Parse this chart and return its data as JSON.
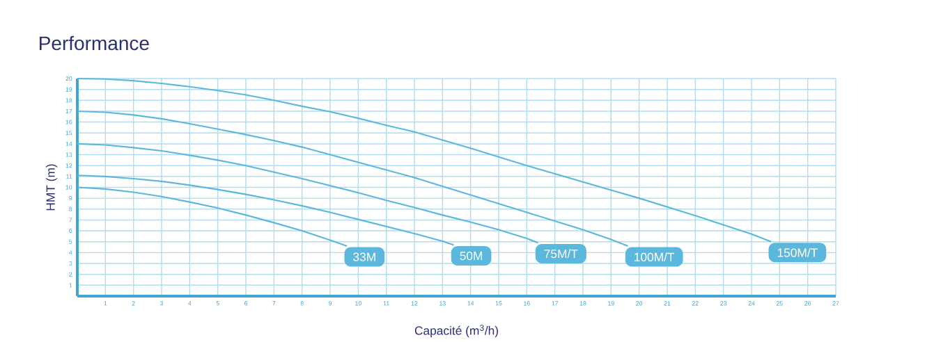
{
  "chart_data": {
    "type": "line",
    "title": "Performance",
    "xlabel": "Capacité (m$^{3}$/h)",
    "ylabel": "HMT (m)",
    "xlim": [
      0,
      27
    ],
    "ylim": [
      0,
      20
    ],
    "xticks": [
      1,
      2,
      3,
      4,
      5,
      6,
      7,
      8,
      9,
      10,
      11,
      12,
      13,
      14,
      15,
      16,
      17,
      18,
      19,
      20,
      21,
      22,
      23,
      24,
      25,
      26,
      27
    ],
    "yticks": [
      1,
      2,
      3,
      4,
      5,
      6,
      7,
      8,
      9,
      10,
      11,
      12,
      13,
      14,
      15,
      16,
      17,
      18,
      19,
      20
    ],
    "grid": true,
    "marker": "none",
    "line_style": "solid",
    "series": [
      {
        "name": "33M",
        "color": "#5bb8dc",
        "x": [
          0,
          1,
          2,
          3,
          4,
          5,
          6,
          7,
          8,
          9,
          9.6
        ],
        "values": [
          10,
          9.85,
          9.55,
          9.15,
          8.65,
          8.1,
          7.45,
          6.75,
          6.0,
          5.15,
          4.6
        ]
      },
      {
        "name": "50M",
        "color": "#5bb8dc",
        "x": [
          0,
          1,
          2,
          3,
          4,
          5,
          6,
          7,
          8,
          9,
          10,
          11,
          12,
          13,
          13.4
        ],
        "values": [
          11.1,
          11.0,
          10.8,
          10.55,
          10.2,
          9.8,
          9.35,
          8.85,
          8.3,
          7.7,
          7.05,
          6.4,
          5.75,
          5.05,
          4.7
        ]
      },
      {
        "name": "75M/T",
        "color": "#5bb8dc",
        "x": [
          0,
          1,
          2,
          3,
          4,
          5,
          6,
          7,
          8,
          9,
          10,
          11,
          12,
          13,
          14,
          15,
          16,
          16.4
        ],
        "values": [
          14,
          13.9,
          13.65,
          13.35,
          12.95,
          12.5,
          12.0,
          11.4,
          10.8,
          10.15,
          9.5,
          8.8,
          8.15,
          7.45,
          6.8,
          6.1,
          5.3,
          4.9
        ]
      },
      {
        "name": "100M/T",
        "color": "#5bb8dc",
        "x": [
          0,
          1,
          2,
          3,
          4,
          5,
          6,
          7,
          8,
          9,
          10,
          11,
          12,
          13,
          14,
          15,
          16,
          17,
          18,
          19,
          19.6
        ],
        "values": [
          17,
          16.9,
          16.65,
          16.3,
          15.85,
          15.35,
          14.85,
          14.3,
          13.7,
          13.0,
          12.3,
          11.6,
          10.9,
          10.1,
          9.3,
          8.5,
          7.7,
          6.9,
          6.1,
          5.2,
          4.6
        ]
      },
      {
        "name": "150M/T",
        "color": "#5bb8dc",
        "x": [
          0,
          1,
          2,
          3,
          4,
          5,
          6,
          7,
          8,
          9,
          10,
          11,
          12,
          13,
          14,
          15,
          16,
          17,
          18,
          19,
          20,
          21,
          22,
          23,
          24,
          24.7
        ],
        "values": [
          20,
          19.95,
          19.8,
          19.55,
          19.25,
          18.9,
          18.5,
          18.0,
          17.45,
          16.95,
          16.35,
          15.7,
          15.1,
          14.35,
          13.6,
          12.8,
          12.0,
          11.25,
          10.5,
          9.75,
          9.0,
          8.2,
          7.4,
          6.55,
          5.7,
          5.0
        ]
      }
    ]
  }
}
